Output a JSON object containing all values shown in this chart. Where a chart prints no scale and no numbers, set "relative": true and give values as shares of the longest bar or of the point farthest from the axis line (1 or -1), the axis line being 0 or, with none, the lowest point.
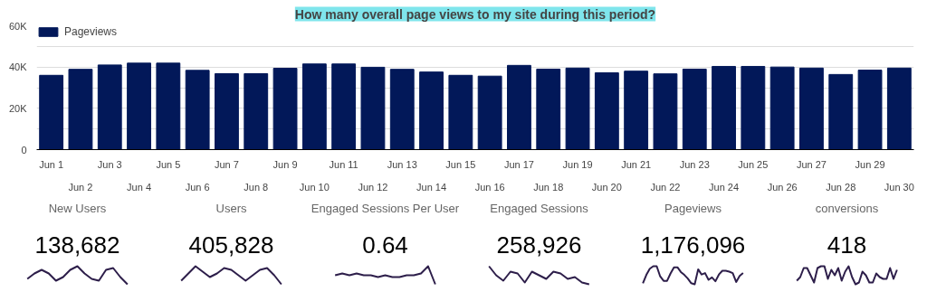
{
  "chart_data": [
    {
      "type": "bar",
      "title": "How many overall page views to my site during this period?",
      "legend": "top left",
      "grid": "y",
      "categories": [
        "Jun 1",
        "Jun 2",
        "Jun 3",
        "Jun 4",
        "Jun 5",
        "Jun 6",
        "Jun 7",
        "Jun 8",
        "Jun 9",
        "Jun 10",
        "Jun 11",
        "Jun 12",
        "Jun 13",
        "Jun 14",
        "Jun 15",
        "Jun 16",
        "Jun 17",
        "Jun 18",
        "Jun 19",
        "Jun 20",
        "Jun 21",
        "Jun 22",
        "Jun 23",
        "Jun 24",
        "Jun 25",
        "Jun 26",
        "Jun 27",
        "Jun 28",
        "Jun 29",
        "Jun 30"
      ],
      "series": [
        {
          "name": "Pageviews",
          "color": "#021859",
          "values": [
            36000,
            38900,
            41000,
            41900,
            41900,
            38400,
            36800,
            36800,
            39400,
            41500,
            41500,
            39900,
            38900,
            37600,
            36000,
            35600,
            40800,
            39000,
            39500,
            37200,
            38000,
            36700,
            39000,
            40300,
            40300,
            40000,
            39500,
            36400,
            38500,
            39500
          ]
        }
      ],
      "ylim": [
        0,
        60000
      ],
      "yticks": [
        {
          "value": 0,
          "label": "0"
        },
        {
          "value": 10000,
          "label": null
        },
        {
          "value": 20000,
          "label": "20K"
        },
        {
          "value": 30000,
          "label": null
        },
        {
          "value": 40000,
          "label": "40K"
        },
        {
          "value": 50000,
          "label": null
        },
        {
          "value": 60000,
          "label": "60K"
        }
      ]
    },
    {
      "type": "line",
      "relative": true,
      "title": "New Users",
      "annotations": [
        "138,682"
      ],
      "categories": [
        null,
        null,
        null,
        null,
        null,
        null,
        null,
        null,
        null,
        null,
        null,
        null,
        null,
        null,
        null
      ],
      "series": [
        {
          "color": "#2d1e4a",
          "values": [
            0.3,
            0.6,
            0.8,
            0.6,
            0.2,
            0.4,
            0.8,
            1.0,
            0.6,
            0.3,
            0.2,
            0.8,
            0.9,
            0.4,
            0.0
          ]
        }
      ]
    },
    {
      "type": "line",
      "relative": true,
      "title": "Users",
      "annotations": [
        "405,828"
      ],
      "categories": [
        null,
        null,
        null,
        null,
        null,
        null,
        null,
        null,
        null,
        null,
        null,
        null,
        null,
        null,
        null
      ],
      "series": [
        {
          "color": "#2d1e4a",
          "values": [
            0.2,
            0.6,
            1.0,
            0.7,
            0.4,
            0.6,
            0.9,
            0.8,
            0.5,
            0.2,
            0.5,
            0.8,
            0.9,
            0.5,
            0.0
          ]
        }
      ]
    },
    {
      "type": "line",
      "relative": true,
      "title": "Engaged Sessions Per User",
      "annotations": [
        "0.64"
      ],
      "categories": [
        null,
        null,
        null,
        null,
        null,
        null,
        null,
        null,
        null,
        null,
        null,
        null,
        null,
        null,
        null
      ],
      "series": [
        {
          "color": "#2d1e4a",
          "values": [
            0.5,
            0.6,
            0.5,
            0.6,
            0.5,
            0.5,
            0.4,
            0.5,
            0.4,
            0.4,
            0.5,
            0.5,
            0.6,
            1.0,
            0.0
          ]
        }
      ]
    },
    {
      "type": "line",
      "relative": true,
      "title": "Engaged Sessions",
      "annotations": [
        "258,926"
      ],
      "categories": [
        null,
        null,
        null,
        null,
        null,
        null,
        null,
        null,
        null,
        null,
        null,
        null,
        null,
        null,
        null
      ],
      "series": [
        {
          "color": "#2d1e4a",
          "values": [
            1.0,
            0.5,
            0.2,
            0.7,
            0.6,
            0.1,
            0.7,
            0.5,
            0.3,
            0.7,
            0.6,
            0.3,
            0.4,
            0.1,
            0.0
          ]
        }
      ]
    },
    {
      "type": "line",
      "relative": true,
      "title": "Pageviews",
      "annotations": [
        "1,176,096"
      ],
      "categories": [
        null,
        null,
        null,
        null,
        null,
        null,
        null,
        null,
        null,
        null,
        null,
        null,
        null,
        null,
        null,
        null,
        null,
        null,
        null,
        null,
        null,
        null,
        null,
        null,
        null,
        null,
        null,
        null,
        null,
        null
      ],
      "series": [
        {
          "color": "#2d1e4a",
          "values": [
            0.06,
            0.52,
            0.86,
            1,
            1,
            0.44,
            0.19,
            0.19,
            0.6,
            0.94,
            0.94,
            0.68,
            0.52,
            0.32,
            0.06,
            0,
            0.83,
            0.54,
            0.62,
            0.25,
            0.38,
            0.17,
            0.54,
            0.75,
            0.75,
            0.7,
            0.62,
            0.13,
            0.46,
            0.62
          ]
        }
      ]
    },
    {
      "type": "line",
      "relative": true,
      "title": "conversions",
      "annotations": [
        "418"
      ],
      "categories": [
        null,
        null,
        null,
        null,
        null,
        null,
        null,
        null,
        null,
        null,
        null,
        null,
        null,
        null,
        null,
        null,
        null,
        null,
        null,
        null,
        null,
        null,
        null,
        null,
        null,
        null,
        null,
        null,
        null,
        null
      ],
      "series": [
        {
          "color": "#2d1e4a",
          "values": [
            0.2,
            0.4,
            0.9,
            0.9,
            0.5,
            0.1,
            0.9,
            1,
            1,
            0.3,
            0.8,
            0.5,
            0.9,
            0.2,
            0.7,
            1,
            0.4,
            0.0,
            0.1,
            0.7,
            0.5,
            0.1,
            0.1,
            0.6,
            0.4,
            0.3,
            0.3,
            0.9,
            0.3,
            0.8
          ]
        }
      ]
    }
  ]
}
